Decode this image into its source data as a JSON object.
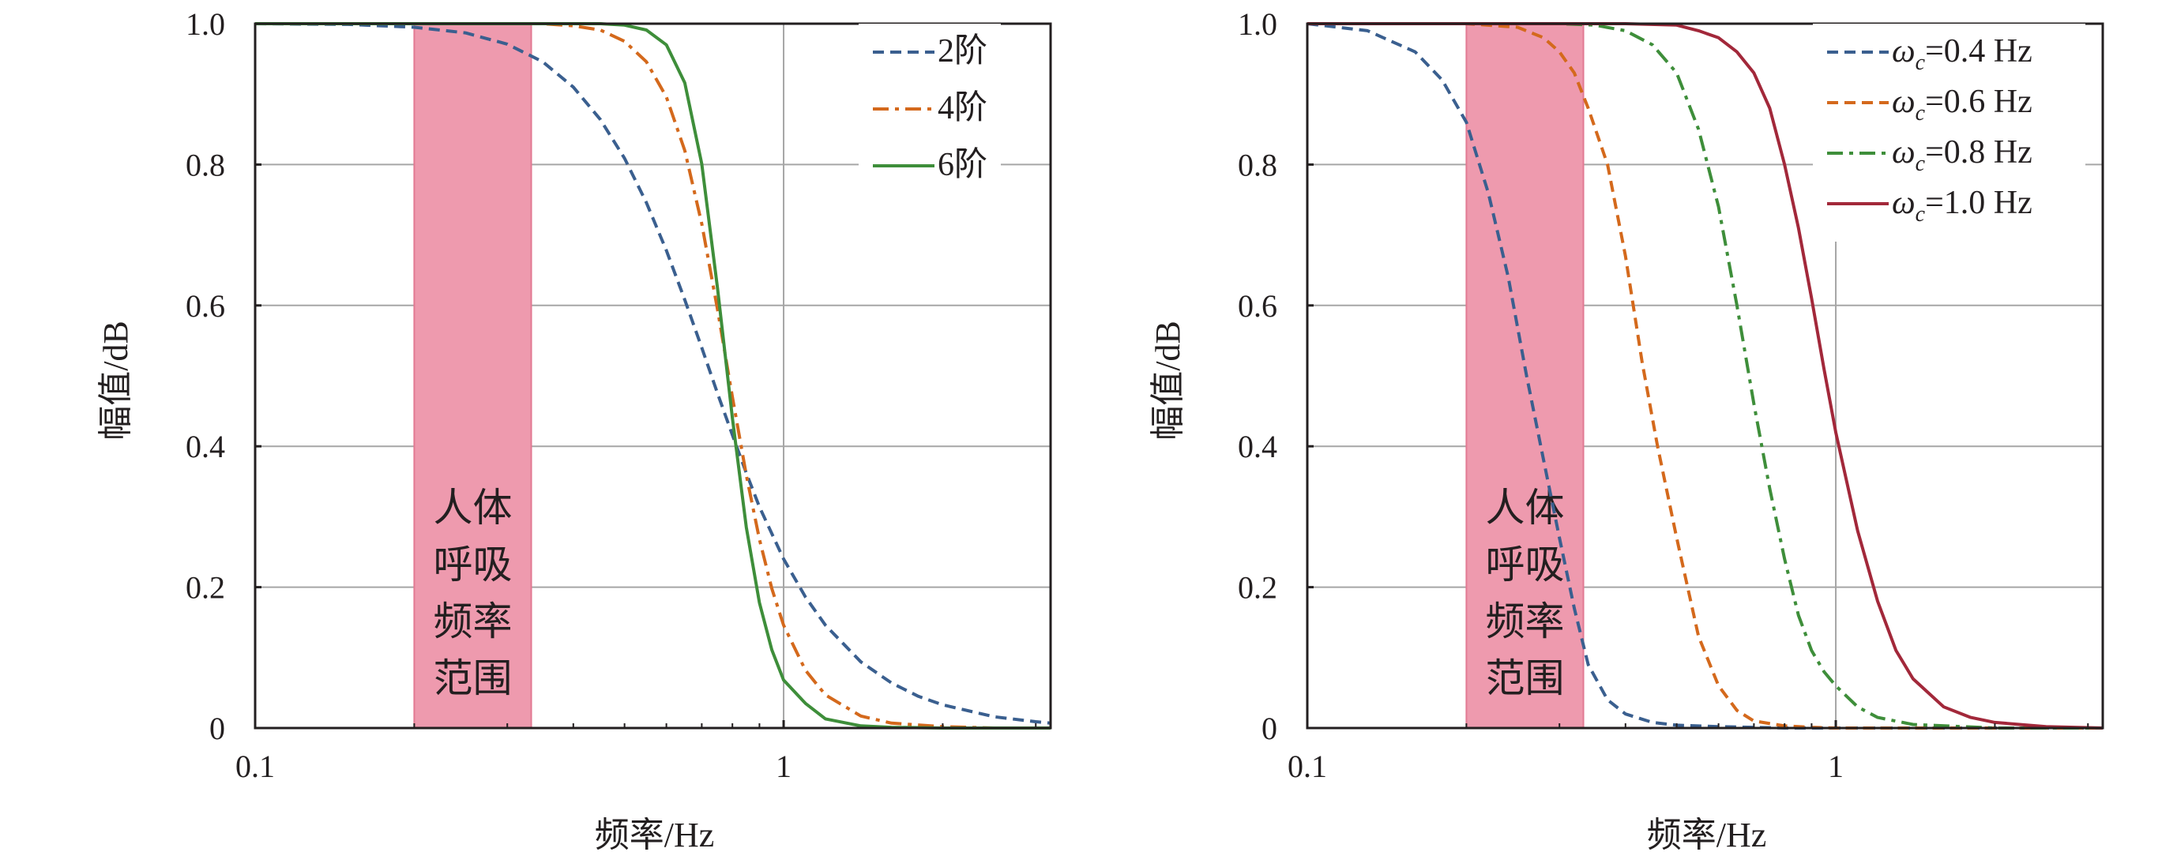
{
  "chart_data": [
    {
      "type": "line",
      "xscale": "log",
      "xlim": [
        0.1,
        3.2
      ],
      "ylim": [
        0,
        1
      ],
      "xlabel": "频率/Hz",
      "ylabel": "幅值/dB",
      "xticks": [
        "0.1",
        "1"
      ],
      "yticks": [
        "0",
        "0.2",
        "0.4",
        "0.6",
        "0.8",
        "1.0"
      ],
      "grid": true,
      "legend_position": "top-right",
      "band": {
        "x": [
          0.2,
          0.333
        ],
        "label": [
          "人体",
          "呼吸",
          "频率",
          "范围"
        ],
        "color": "#ee9aae"
      },
      "series": [
        {
          "name": "2阶",
          "color": "#3a5f8f",
          "dash": "dashed",
          "x": [
            0.1,
            0.15,
            0.2,
            0.25,
            0.3,
            0.35,
            0.4,
            0.45,
            0.5,
            0.55,
            0.6,
            0.65,
            0.7,
            0.75,
            0.8,
            0.85,
            0.9,
            1.0,
            1.1,
            1.2,
            1.4,
            1.6,
            1.8,
            2.0,
            2.5,
            3.0,
            3.2
          ],
          "y": [
            1.0,
            0.999,
            0.995,
            0.987,
            0.971,
            0.946,
            0.91,
            0.864,
            0.809,
            0.746,
            0.678,
            0.608,
            0.54,
            0.475,
            0.416,
            0.362,
            0.314,
            0.24,
            0.186,
            0.146,
            0.094,
            0.064,
            0.045,
            0.033,
            0.016,
            0.009,
            0.007
          ]
        },
        {
          "name": "4阶",
          "color": "#d4691c",
          "dash": "dashdot",
          "x": [
            0.1,
            0.2,
            0.3,
            0.35,
            0.4,
            0.45,
            0.5,
            0.55,
            0.6,
            0.65,
            0.7,
            0.75,
            0.8,
            0.85,
            0.9,
            0.95,
            1.0,
            1.1,
            1.2,
            1.4,
            1.6,
            2.0,
            2.5,
            3.2
          ],
          "y": [
            1.0,
            1.0,
            1.0,
            1.0,
            0.997,
            0.991,
            0.975,
            0.946,
            0.896,
            0.82,
            0.716,
            0.594,
            0.47,
            0.359,
            0.268,
            0.198,
            0.146,
            0.082,
            0.047,
            0.017,
            0.007,
            0.002,
            0.0,
            0.0
          ]
        },
        {
          "name": "6阶",
          "color": "#3e8e3a",
          "dash": "solid",
          "x": [
            0.1,
            0.3,
            0.4,
            0.45,
            0.5,
            0.55,
            0.6,
            0.65,
            0.7,
            0.75,
            0.8,
            0.85,
            0.9,
            0.95,
            1.0,
            1.1,
            1.2,
            1.4,
            1.6,
            2.0,
            3.2
          ],
          "y": [
            1.0,
            1.0,
            1.0,
            1.0,
            0.998,
            0.991,
            0.97,
            0.916,
            0.801,
            0.624,
            0.44,
            0.285,
            0.178,
            0.111,
            0.068,
            0.035,
            0.013,
            0.003,
            0.001,
            0.0,
            0.0
          ]
        }
      ]
    },
    {
      "type": "line",
      "xscale": "log",
      "xlim": [
        0.1,
        3.2
      ],
      "ylim": [
        0,
        1
      ],
      "xlabel": "频率/Hz",
      "ylabel": "幅值/dB",
      "xticks": [
        "0.1",
        "1"
      ],
      "yticks": [
        "0",
        "0.2",
        "0.4",
        "0.6",
        "0.8",
        "1.0"
      ],
      "grid": true,
      "legend_position": "top-right",
      "band": {
        "x": [
          0.2,
          0.333
        ],
        "label": [
          "人体",
          "呼吸",
          "频率",
          "范围"
        ],
        "color": "#ee9aae"
      },
      "series": [
        {
          "name": "ω",
          "sub": "c",
          "value_label": "=0.4 Hz",
          "color": "#3a5f8f",
          "dash": "dashed",
          "x": [
            0.1,
            0.13,
            0.16,
            0.18,
            0.2,
            0.22,
            0.24,
            0.26,
            0.28,
            0.3,
            0.32,
            0.34,
            0.37,
            0.4,
            0.45,
            0.5,
            0.6,
            0.8,
            1.0,
            2.0,
            3.2
          ],
          "y": [
            1.0,
            0.99,
            0.96,
            0.92,
            0.86,
            0.76,
            0.64,
            0.5,
            0.38,
            0.27,
            0.17,
            0.09,
            0.04,
            0.02,
            0.008,
            0.004,
            0.002,
            0.0,
            0.0,
            0.0,
            0.0
          ]
        },
        {
          "name": "ω",
          "sub": "c",
          "value_label": "=0.6 Hz",
          "color": "#d4691c",
          "dash": "dashed",
          "x": [
            0.1,
            0.2,
            0.25,
            0.28,
            0.3,
            0.32,
            0.34,
            0.37,
            0.4,
            0.43,
            0.46,
            0.5,
            0.55,
            0.6,
            0.65,
            0.7,
            0.8,
            0.9,
            1.0,
            1.5,
            3.2
          ],
          "y": [
            1.0,
            1.0,
            0.995,
            0.98,
            0.96,
            0.93,
            0.88,
            0.8,
            0.67,
            0.52,
            0.4,
            0.27,
            0.13,
            0.06,
            0.025,
            0.01,
            0.003,
            0.001,
            0.0,
            0.0,
            0.0
          ]
        },
        {
          "name": "ω",
          "sub": "c",
          "value_label": "=0.8 Hz",
          "color": "#3e8e3a",
          "dash": "dashdot",
          "x": [
            0.1,
            0.3,
            0.35,
            0.4,
            0.45,
            0.5,
            0.55,
            0.6,
            0.65,
            0.7,
            0.75,
            0.8,
            0.85,
            0.9,
            0.95,
            1.0,
            1.1,
            1.2,
            1.4,
            2.0,
            3.2
          ],
          "y": [
            1.0,
            1.0,
            0.998,
            0.99,
            0.97,
            0.93,
            0.85,
            0.74,
            0.6,
            0.46,
            0.34,
            0.24,
            0.16,
            0.11,
            0.08,
            0.06,
            0.03,
            0.015,
            0.005,
            0.0,
            0.0
          ]
        },
        {
          "name": "ω",
          "sub": "c",
          "value_label": "=1.0 Hz",
          "color": "#a2283a",
          "dash": "solid",
          "x": [
            0.1,
            0.4,
            0.5,
            0.55,
            0.6,
            0.65,
            0.7,
            0.75,
            0.8,
            0.85,
            0.9,
            0.95,
            1.0,
            1.1,
            1.2,
            1.3,
            1.4,
            1.6,
            1.8,
            2.0,
            2.5,
            3.2
          ],
          "y": [
            1.0,
            1.0,
            0.998,
            0.99,
            0.98,
            0.96,
            0.93,
            0.88,
            0.8,
            0.71,
            0.61,
            0.51,
            0.42,
            0.28,
            0.18,
            0.11,
            0.07,
            0.03,
            0.015,
            0.008,
            0.002,
            0.0
          ]
        }
      ]
    }
  ]
}
